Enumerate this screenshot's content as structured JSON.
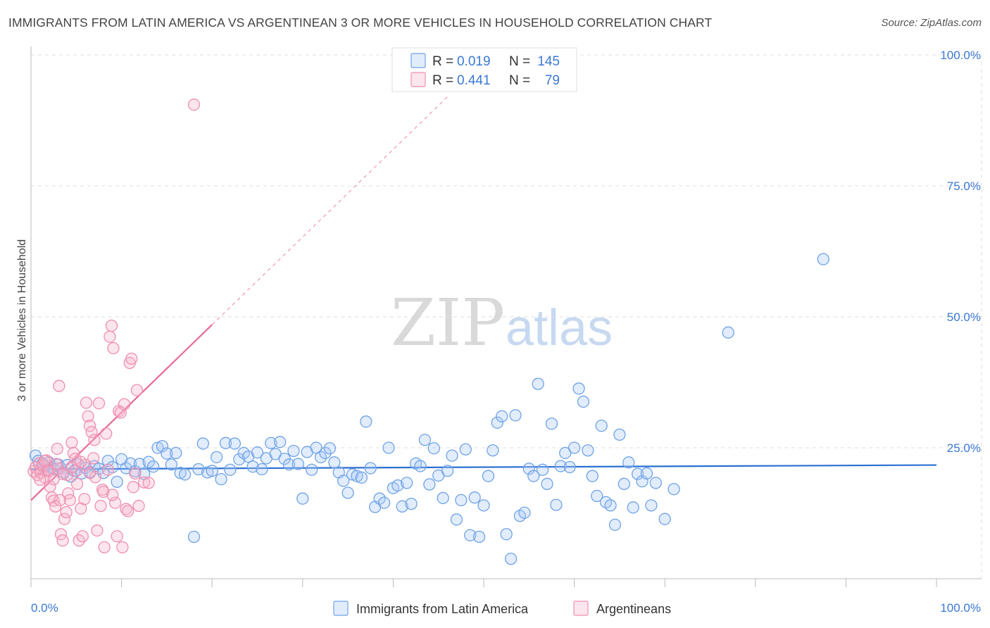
{
  "title": "IMMIGRANTS FROM LATIN AMERICA VS ARGENTINEAN 3 OR MORE VEHICLES IN HOUSEHOLD CORRELATION CHART",
  "source": "Source: ZipAtlas.com",
  "watermark": {
    "zip": "ZIP",
    "atlas": "atlas"
  },
  "colors": {
    "blue": "#6fa3e6",
    "blue_fill": "rgba(170,200,245,0.35)",
    "blue_line": "#2a6fd1",
    "pink": "#ee8fb0",
    "pink_fill": "rgba(245,180,200,0.35)",
    "pink_line": "#e8699a",
    "axis_label": "#3a78d4",
    "grid": "#dcdcdc"
  },
  "legend_top": [
    {
      "r_label": "R = ",
      "r_value": "0.019",
      "n_label": "N = ",
      "n_value": "145",
      "color": "blue"
    },
    {
      "r_label": "R = ",
      "r_value": "0.441",
      "n_label": "N = ",
      "n_value": "79",
      "color": "pink"
    }
  ],
  "legend_bottom": [
    {
      "label": "Immigrants from Latin America",
      "color": "blue"
    },
    {
      "label": "Argentineans",
      "color": "pink"
    }
  ],
  "chart_data": {
    "type": "scatter",
    "xlabel": "",
    "ylabel": "3 or more Vehicles in Household",
    "xlim": [
      0,
      100
    ],
    "ylim": [
      0,
      100
    ],
    "x_tick_labels": [
      "0.0%",
      "100.0%"
    ],
    "y_ticks": [
      25,
      50,
      75,
      100
    ],
    "y_tick_labels": [
      "25.0%",
      "50.0%",
      "75.0%",
      "100.0%"
    ],
    "grid": true,
    "legend_position": "top-center",
    "series": [
      {
        "name": "Immigrants from Latin America",
        "color": "blue",
        "trend": {
          "x": [
            0,
            100
          ],
          "y": [
            20.9,
            21.7
          ]
        },
        "points": [
          [
            0.5,
            23.5
          ],
          [
            0.8,
            22.5
          ],
          [
            1.0,
            21.0
          ],
          [
            1.3,
            22.0
          ],
          [
            1.5,
            21.5
          ],
          [
            1.8,
            20.8
          ],
          [
            2.0,
            22.2
          ],
          [
            2.3,
            21.3
          ],
          [
            2.6,
            20.9
          ],
          [
            3.0,
            21.8
          ],
          [
            3.3,
            21.1
          ],
          [
            3.6,
            20.3
          ],
          [
            4.0,
            21.7
          ],
          [
            4.4,
            19.5
          ],
          [
            4.8,
            20.6
          ],
          [
            5.2,
            21.9
          ],
          [
            5.6,
            20.1
          ],
          [
            6.0,
            21.2
          ],
          [
            6.5,
            20.4
          ],
          [
            7.0,
            21.5
          ],
          [
            7.5,
            21.0
          ],
          [
            8.0,
            20.2
          ],
          [
            8.5,
            22.5
          ],
          [
            9.0,
            21.3
          ],
          [
            9.5,
            18.5
          ],
          [
            10.0,
            22.8
          ],
          [
            10.5,
            21.1
          ],
          [
            11.0,
            22.0
          ],
          [
            11.5,
            20.5
          ],
          [
            12.0,
            21.9
          ],
          [
            12.5,
            20.0
          ],
          [
            13.0,
            22.3
          ],
          [
            13.5,
            21.4
          ],
          [
            14.0,
            25.0
          ],
          [
            14.5,
            25.3
          ],
          [
            15.0,
            23.9
          ],
          [
            15.5,
            21.8
          ],
          [
            16.0,
            24.0
          ],
          [
            16.5,
            20.2
          ],
          [
            17.0,
            19.9
          ],
          [
            18.0,
            8.0
          ],
          [
            18.5,
            20.9
          ],
          [
            19.0,
            25.8
          ],
          [
            19.5,
            20.3
          ],
          [
            20.0,
            20.6
          ],
          [
            20.5,
            23.2
          ],
          [
            21.0,
            19.0
          ],
          [
            21.5,
            25.9
          ],
          [
            22.0,
            20.8
          ],
          [
            22.5,
            25.8
          ],
          [
            23.0,
            22.8
          ],
          [
            23.5,
            24.0
          ],
          [
            24.0,
            23.3
          ],
          [
            24.5,
            21.4
          ],
          [
            25.0,
            24.1
          ],
          [
            25.5,
            20.9
          ],
          [
            26.0,
            23.0
          ],
          [
            26.5,
            25.9
          ],
          [
            27.0,
            23.8
          ],
          [
            27.5,
            26.1
          ],
          [
            28.0,
            22.9
          ],
          [
            28.5,
            21.8
          ],
          [
            29.0,
            24.4
          ],
          [
            29.5,
            21.9
          ],
          [
            30.0,
            15.3
          ],
          [
            30.5,
            24.2
          ],
          [
            31.0,
            20.8
          ],
          [
            31.5,
            25.0
          ],
          [
            32.0,
            23.2
          ],
          [
            32.5,
            24.0
          ],
          [
            33.0,
            24.9
          ],
          [
            33.5,
            22.2
          ],
          [
            34.0,
            20.3
          ],
          [
            34.5,
            18.7
          ],
          [
            35.0,
            16.4
          ],
          [
            35.5,
            19.9
          ],
          [
            36.0,
            19.6
          ],
          [
            36.5,
            19.3
          ],
          [
            37.0,
            30.0
          ],
          [
            37.5,
            21.1
          ],
          [
            38.0,
            13.7
          ],
          [
            38.5,
            15.3
          ],
          [
            39.0,
            14.5
          ],
          [
            39.5,
            25.0
          ],
          [
            40.0,
            17.3
          ],
          [
            40.5,
            17.8
          ],
          [
            41.0,
            13.8
          ],
          [
            41.5,
            18.3
          ],
          [
            42.0,
            14.3
          ],
          [
            42.5,
            22.0
          ],
          [
            43.0,
            21.5
          ],
          [
            43.5,
            26.5
          ],
          [
            44.0,
            18.0
          ],
          [
            44.5,
            24.9
          ],
          [
            45.0,
            19.7
          ],
          [
            45.5,
            15.4
          ],
          [
            46.0,
            20.6
          ],
          [
            46.5,
            23.5
          ],
          [
            47.0,
            11.3
          ],
          [
            47.5,
            15.0
          ],
          [
            48.0,
            24.7
          ],
          [
            48.5,
            8.3
          ],
          [
            49.0,
            15.5
          ],
          [
            49.5,
            8.0
          ],
          [
            50.0,
            14.0
          ],
          [
            50.5,
            19.6
          ],
          [
            51.0,
            24.5
          ],
          [
            51.5,
            29.8
          ],
          [
            52.0,
            31.0
          ],
          [
            52.5,
            8.5
          ],
          [
            53.0,
            3.8
          ],
          [
            53.5,
            31.2
          ],
          [
            54.0,
            12.0
          ],
          [
            54.5,
            12.6
          ],
          [
            55.0,
            21.0
          ],
          [
            55.5,
            19.6
          ],
          [
            56.0,
            37.2
          ],
          [
            56.5,
            20.8
          ],
          [
            57.0,
            18.1
          ],
          [
            57.5,
            29.6
          ],
          [
            58.0,
            14.1
          ],
          [
            58.5,
            21.5
          ],
          [
            59.0,
            24.0
          ],
          [
            59.5,
            21.3
          ],
          [
            60.0,
            25.0
          ],
          [
            60.5,
            36.3
          ],
          [
            61.0,
            33.8
          ],
          [
            61.5,
            24.5
          ],
          [
            62.0,
            19.6
          ],
          [
            62.5,
            15.8
          ],
          [
            63.0,
            29.2
          ],
          [
            63.5,
            14.6
          ],
          [
            64.0,
            14.0
          ],
          [
            64.5,
            10.3
          ],
          [
            65.0,
            27.5
          ],
          [
            65.5,
            18.1
          ],
          [
            66.0,
            22.2
          ],
          [
            66.5,
            13.6
          ],
          [
            67.0,
            20.0
          ],
          [
            67.5,
            18.6
          ],
          [
            68.0,
            20.1
          ],
          [
            68.5,
            14.0
          ],
          [
            69.0,
            18.3
          ],
          [
            70.0,
            11.4
          ],
          [
            71.0,
            17.1
          ],
          [
            77.0,
            47.0
          ],
          [
            87.5,
            61.0
          ]
        ]
      },
      {
        "name": "Argentineans",
        "color": "pink",
        "trend": {
          "x": [
            0,
            20
          ],
          "y": [
            15.0,
            48.5
          ],
          "dashed_to": {
            "x": [
              20,
              46
            ],
            "y": [
              48.5,
              92.0
            ]
          }
        },
        "points": [
          [
            0.3,
            20.5
          ],
          [
            0.5,
            21.2
          ],
          [
            0.7,
            19.8
          ],
          [
            0.9,
            22.0
          ],
          [
            1.1,
            20.2
          ],
          [
            1.3,
            21.6
          ],
          [
            1.5,
            19.4
          ],
          [
            1.7,
            22.6
          ],
          [
            1.9,
            20.8
          ],
          [
            2.1,
            17.6
          ],
          [
            2.3,
            15.5
          ],
          [
            2.5,
            14.9
          ],
          [
            2.7,
            13.8
          ],
          [
            2.9,
            24.8
          ],
          [
            3.1,
            36.8
          ],
          [
            3.3,
            8.5
          ],
          [
            3.5,
            7.3
          ],
          [
            3.7,
            11.4
          ],
          [
            3.9,
            12.7
          ],
          [
            4.1,
            16.3
          ],
          [
            4.3,
            15.0
          ],
          [
            4.5,
            26.0
          ],
          [
            4.7,
            24.0
          ],
          [
            4.9,
            22.9
          ],
          [
            5.1,
            18.1
          ],
          [
            5.3,
            7.3
          ],
          [
            5.5,
            13.4
          ],
          [
            5.7,
            8.1
          ],
          [
            5.9,
            15.2
          ],
          [
            6.1,
            33.6
          ],
          [
            6.3,
            31.0
          ],
          [
            6.5,
            29.2
          ],
          [
            6.7,
            28.0
          ],
          [
            6.9,
            23.0
          ],
          [
            7.1,
            19.4
          ],
          [
            7.3,
            9.2
          ],
          [
            7.5,
            33.5
          ],
          [
            7.7,
            13.9
          ],
          [
            7.9,
            17.0
          ],
          [
            8.1,
            6.0
          ],
          [
            8.3,
            27.7
          ],
          [
            8.5,
            20.8
          ],
          [
            8.7,
            46.2
          ],
          [
            8.9,
            48.3
          ],
          [
            9.1,
            44.0
          ],
          [
            9.3,
            14.5
          ],
          [
            9.5,
            8.1
          ],
          [
            9.7,
            32.0
          ],
          [
            9.9,
            31.7
          ],
          [
            10.1,
            6.0
          ],
          [
            10.3,
            33.3
          ],
          [
            10.5,
            13.3
          ],
          [
            10.7,
            12.9
          ],
          [
            10.9,
            41.2
          ],
          [
            11.1,
            42.0
          ],
          [
            11.3,
            17.5
          ],
          [
            11.5,
            20.1
          ],
          [
            11.7,
            36.0
          ],
          [
            11.9,
            13.9
          ],
          [
            12.5,
            18.4
          ],
          [
            13.0,
            18.3
          ],
          [
            18.0,
            90.5
          ],
          [
            2.0,
            20.5
          ],
          [
            3.0,
            21.0
          ],
          [
            4.0,
            19.8
          ],
          [
            5.0,
            20.6
          ],
          [
            6.0,
            21.7
          ],
          [
            1.5,
            22.5
          ],
          [
            2.5,
            19.0
          ],
          [
            3.5,
            20.0
          ],
          [
            4.5,
            21.3
          ],
          [
            5.5,
            22.3
          ],
          [
            6.5,
            20.2
          ],
          [
            7.0,
            26.5
          ],
          [
            1.0,
            18.9
          ],
          [
            8.0,
            16.6
          ],
          [
            9.0,
            16.0
          ],
          [
            3.2,
            15.0
          ],
          [
            2.8,
            21.9
          ]
        ]
      }
    ]
  }
}
